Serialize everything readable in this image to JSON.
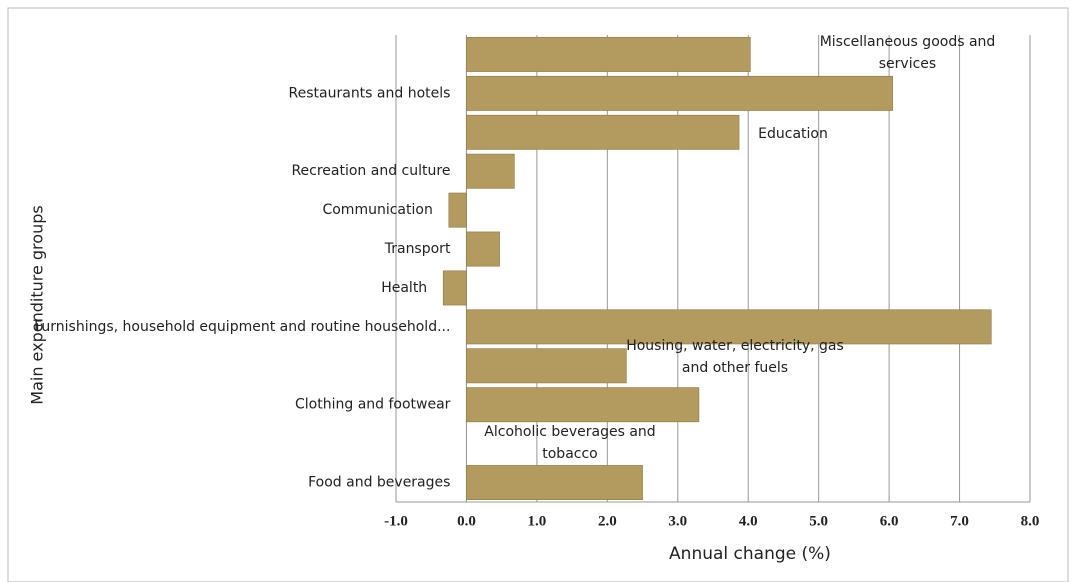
{
  "chart_data": {
    "type": "bar",
    "orientation": "horizontal",
    "x_axis_label": "Annual change (%)",
    "y_axis_label": "Main expenditure groups",
    "categories": [
      "Food and  beverages",
      "Alcoholic beverages and tobacco",
      "Clothing and footwear",
      "Housing, water, electricity, gas and other fuels",
      "Furnishings, household equipment and routine household...",
      "Health",
      "Transport",
      "Communication",
      "Recreation and culture",
      "Education",
      "Restaurants and hotels",
      "Miscellaneous goods and services"
    ],
    "values": [
      2.5,
      0,
      3.3,
      2.27,
      7.45,
      -0.33,
      0.47,
      -0.25,
      0.68,
      3.87,
      6.05,
      4.03
    ],
    "color": "#b39a5e",
    "xlim": [
      -1,
      8
    ],
    "xticks": [
      {
        "value": -1,
        "label": "-1.0"
      },
      {
        "value": 0,
        "label": "0.0"
      },
      {
        "value": 1,
        "label": "1.0"
      },
      {
        "value": 2,
        "label": "2.0"
      },
      {
        "value": 3,
        "label": "3.0"
      },
      {
        "value": 4,
        "label": "4.0"
      },
      {
        "value": 5,
        "label": "5.0"
      },
      {
        "value": 6,
        "label": "6.0"
      },
      {
        "value": 7,
        "label": "7.0"
      },
      {
        "value": 8,
        "label": "8.0"
      }
    ],
    "grid": true
  }
}
